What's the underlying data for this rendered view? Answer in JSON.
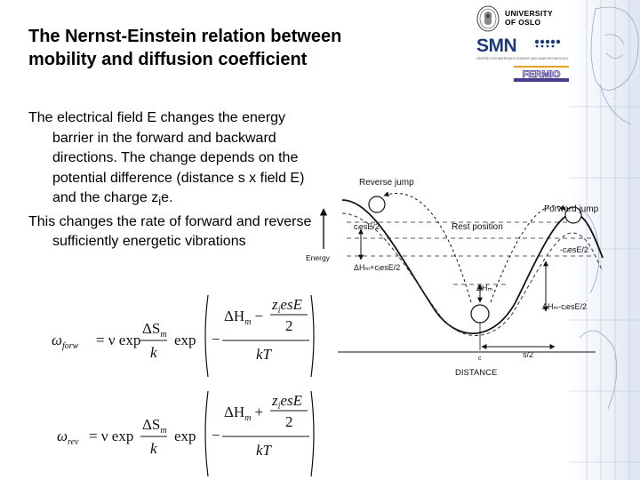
{
  "slide": {
    "title_line1": "The Nernst-Einstein relation between",
    "title_line2": "mobility and diffusion coefficient",
    "para1_a": "The electrical field E changes the energy barrier in the forward and backward directions. The change depends on the potential difference (distance s x field E) and the charge z",
    "para1_sub": "i",
    "para1_b": "e.",
    "para2": "This changes the rate of forward and reverse sufficiently energetic vibrations"
  },
  "logos": {
    "uio_line1": "UNIVERSITY",
    "uio_line2": "OF OSLO",
    "smn": "SMN",
    "smn_tagline": "CENTRE FOR MATERIALS SCIENCE AND NANOTECHNOLOGY",
    "fermio": "FERMIO"
  },
  "diagram": {
    "energy_axis": "Energy",
    "reverse_jump": "Reverse jump",
    "forward_jump": "Forward jump",
    "rest_position": "Rest position",
    "left_shift": "cᵢesE/2",
    "right_shift": "-cᵢesE/2",
    "left_barrier": "ΔHₘ+cᵢesE/2",
    "center_barrier": "ΔHₘ",
    "right_barrier": "ΔHₘ-cᵢesE/2",
    "c_label": "c",
    "half_jump": "s/2",
    "distance": "DISTANCE"
  },
  "eq_forw": {
    "omega_sub": "forw",
    "numer_sign": "−",
    "numer_lead": "ΔH",
    "numer_sub": "m",
    "plusminus": "−"
  },
  "eq_rev": {
    "omega_sub": "rev",
    "numer_sign": "−",
    "numer_lead": "ΔH",
    "numer_sub": "m",
    "plusminus": "+"
  },
  "eq_common": {
    "omega": "ω",
    "equals_nu": "= ν exp",
    "dS": "ΔS",
    "dS_sub": "m",
    "k": "k",
    "exp2": "exp",
    "zi": "z",
    "zi_sub": "i",
    "esE": "esE",
    "two": "2",
    "kT": "kT"
  }
}
